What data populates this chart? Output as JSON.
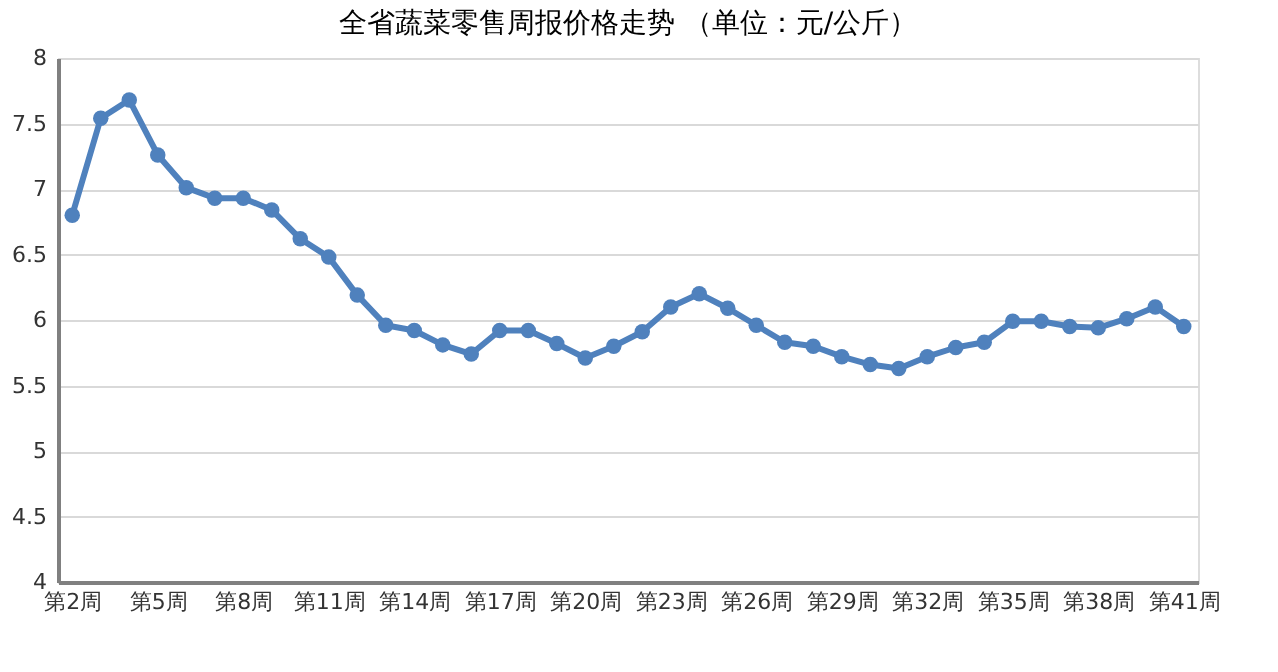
{
  "chart_data": {
    "type": "line",
    "title": "全省蔬菜零售周报价格走势    （单位：元/公斤）",
    "categories": [
      "第2周",
      null,
      null,
      "第5周",
      null,
      null,
      "第8周",
      null,
      null,
      "第11周",
      null,
      null,
      "第14周",
      null,
      null,
      "第17周",
      null,
      null,
      "第20周",
      null,
      null,
      "第23周",
      null,
      null,
      "第26周",
      null,
      null,
      "第29周",
      null,
      null,
      "第32周",
      null,
      null,
      "第35周",
      null,
      null,
      "第38周",
      null,
      null,
      "第41周"
    ],
    "series": [
      {
        "color": "#4f81bd",
        "values": [
          6.8,
          7.54,
          7.68,
          7.26,
          7.01,
          6.93,
          6.93,
          6.84,
          6.62,
          6.48,
          6.19,
          5.96,
          5.92,
          5.81,
          5.74,
          5.92,
          5.92,
          5.82,
          5.71,
          5.8,
          5.91,
          6.1,
          6.2,
          6.09,
          5.96,
          5.83,
          5.8,
          5.72,
          5.66,
          5.63,
          5.72,
          5.79,
          5.83,
          5.99,
          5.99,
          5.95,
          5.94,
          6.01,
          6.1,
          5.95
        ]
      }
    ],
    "ylim": [
      4,
      8
    ],
    "yticks": [
      4,
      4.5,
      5,
      5.5,
      6,
      6.5,
      7,
      7.5,
      8
    ],
    "grid": "y",
    "marker": "circle",
    "line_style": "solid"
  }
}
